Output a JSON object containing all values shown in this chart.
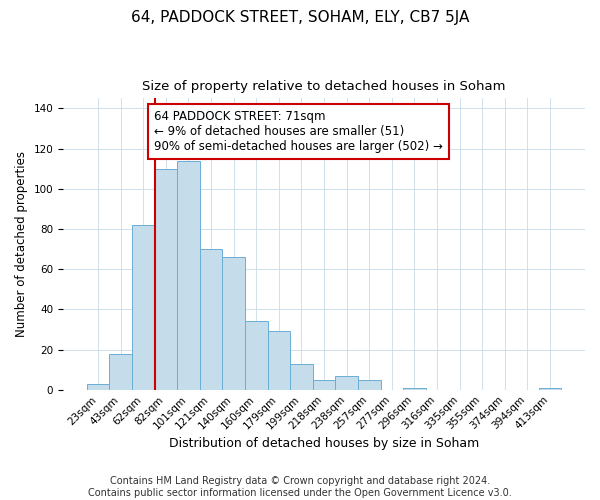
{
  "title": "64, PADDOCK STREET, SOHAM, ELY, CB7 5JA",
  "subtitle": "Size of property relative to detached houses in Soham",
  "xlabel": "Distribution of detached houses by size in Soham",
  "ylabel": "Number of detached properties",
  "bar_labels": [
    "23sqm",
    "43sqm",
    "62sqm",
    "82sqm",
    "101sqm",
    "121sqm",
    "140sqm",
    "160sqm",
    "179sqm",
    "199sqm",
    "218sqm",
    "238sqm",
    "257sqm",
    "277sqm",
    "296sqm",
    "316sqm",
    "335sqm",
    "355sqm",
    "374sqm",
    "394sqm",
    "413sqm"
  ],
  "bar_heights": [
    3,
    18,
    82,
    110,
    114,
    70,
    66,
    34,
    29,
    13,
    5,
    7,
    5,
    0,
    1,
    0,
    0,
    0,
    0,
    0,
    1
  ],
  "bar_color": "#c5dcea",
  "bar_edge_color": "#6aaed6",
  "vline_color": "#cc0000",
  "annotation_text": "64 PADDOCK STREET: 71sqm\n← 9% of detached houses are smaller (51)\n90% of semi-detached houses are larger (502) →",
  "annotation_box_color": "#ffffff",
  "annotation_box_edge": "#cc0000",
  "ylim": [
    0,
    145
  ],
  "yticks": [
    0,
    20,
    40,
    60,
    80,
    100,
    120,
    140
  ],
  "footer_text": "Contains HM Land Registry data © Crown copyright and database right 2024.\nContains public sector information licensed under the Open Government Licence v3.0.",
  "title_fontsize": 11,
  "subtitle_fontsize": 9.5,
  "xlabel_fontsize": 9,
  "ylabel_fontsize": 8.5,
  "tick_fontsize": 7.5,
  "annotation_fontsize": 8.5,
  "footer_fontsize": 7
}
